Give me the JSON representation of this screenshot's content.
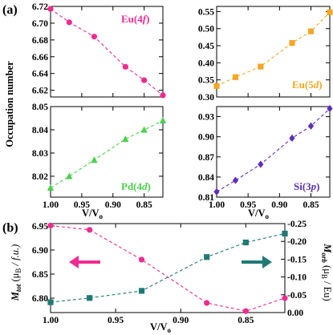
{
  "panel_tags": {
    "a": "(a)",
    "b": "(b)"
  },
  "colors": {
    "eu4f": "#ee2b90",
    "eu5d": "#f5a623",
    "pd4d": "#4cd04c",
    "si3p": "#5c2fb8",
    "mtot": "#ee2b90",
    "morb": "#1f7a75"
  },
  "chart_data": [
    {
      "id": "eu4f",
      "type": "line",
      "label": "Eu(4f)",
      "marker": "circle",
      "x": [
        1.0,
        0.97,
        0.93,
        0.88,
        0.85,
        0.82
      ],
      "y": [
        6.717,
        6.701,
        6.684,
        6.648,
        6.632,
        6.614
      ],
      "xlim": [
        1.0,
        0.82
      ],
      "ylim": [
        6.612,
        6.72
      ],
      "yticks": [
        6.62,
        6.64,
        6.66,
        6.68,
        6.7,
        6.72
      ],
      "ytick_labels": [
        "6.62",
        "6.64",
        "6.66",
        "6.68",
        "6.70",
        "6.72"
      ],
      "xticks": [
        1.0,
        0.95,
        0.9,
        0.85
      ],
      "xtick_labels": []
    },
    {
      "id": "eu5d",
      "type": "line",
      "label": "Eu(5d)",
      "marker": "square",
      "x": [
        1.0,
        0.97,
        0.93,
        0.88,
        0.85,
        0.82
      ],
      "y": [
        0.332,
        0.358,
        0.389,
        0.458,
        0.492,
        0.548
      ],
      "xlim": [
        1.0,
        0.82
      ],
      "ylim": [
        0.3,
        0.565
      ],
      "yticks": [
        0.3,
        0.35,
        0.4,
        0.45,
        0.5,
        0.55
      ],
      "ytick_labels": [
        "0.30",
        "0.35",
        "0.40",
        "0.45",
        "0.50",
        "0.55"
      ],
      "xticks": [
        1.0,
        0.95,
        0.9,
        0.85
      ],
      "xtick_labels": []
    },
    {
      "id": "pd4d",
      "type": "line",
      "label": "Pd(4d)",
      "marker": "triangle",
      "x": [
        1.0,
        0.97,
        0.93,
        0.88,
        0.85,
        0.82
      ],
      "y": [
        8.015,
        8.02,
        8.027,
        8.036,
        8.04,
        8.044
      ],
      "xlim": [
        1.0,
        0.82
      ],
      "ylim": [
        8.011,
        8.05
      ],
      "yticks": [
        8.02,
        8.03,
        8.04,
        8.05
      ],
      "ytick_labels": [
        "8.02",
        "8.03",
        "8.04",
        "8.05"
      ],
      "xticks": [
        1.0,
        0.95,
        0.9,
        0.85
      ],
      "xtick_labels": [
        "1.00",
        "0.95",
        "0.90",
        "0.85"
      ]
    },
    {
      "id": "si3p",
      "type": "line",
      "label": "Si(3p)",
      "marker": "diamond",
      "x": [
        1.0,
        0.97,
        0.93,
        0.88,
        0.85,
        0.82
      ],
      "y": [
        0.818,
        0.835,
        0.859,
        0.898,
        0.916,
        0.942
      ],
      "xlim": [
        1.0,
        0.82
      ],
      "ylim": [
        0.81,
        0.945
      ],
      "yticks": [
        0.81,
        0.84,
        0.87,
        0.9,
        0.93
      ],
      "ytick_labels": [
        "0.81",
        "0.84",
        "0.87",
        "0.90",
        "0.93"
      ],
      "xticks": [
        1.0,
        0.95,
        0.9,
        0.85
      ],
      "xtick_labels": [
        "1.00",
        "0.95",
        "0.90",
        "0.85"
      ]
    },
    {
      "id": "moments",
      "type": "line",
      "x": [
        1.0,
        0.97,
        0.93,
        0.88,
        0.85,
        0.82
      ],
      "xlim": [
        1.0,
        0.82
      ],
      "xticks": [
        1.0,
        0.95,
        0.9,
        0.85
      ],
      "xtick_labels": [
        "1.00",
        "0.95",
        "0.90",
        "0.85"
      ],
      "left_axis": {
        "ylim": [
          6.77,
          6.955
        ],
        "yticks": [
          6.8,
          6.85,
          6.9,
          6.95
        ],
        "ytick_labels": [
          "6.80",
          "6.85",
          "6.90",
          "6.95"
        ]
      },
      "right_axis": {
        "ylim": [
          0.0,
          -0.25
        ],
        "yticks": [
          0.0,
          -0.05,
          -0.1,
          -0.15,
          -0.2,
          -0.25
        ],
        "ytick_labels": [
          "0.00",
          "-0.05",
          "-0.10",
          "-0.15",
          "-0.20",
          "-0.25"
        ]
      },
      "series": [
        {
          "id": "mtot",
          "axis": "left",
          "marker": "circle",
          "y": [
            6.951,
            6.942,
            6.88,
            6.79,
            6.773,
            6.8
          ]
        },
        {
          "id": "morb",
          "axis": "right",
          "marker": "square",
          "y": [
            -0.029,
            -0.041,
            -0.061,
            -0.156,
            -0.197,
            -0.222
          ]
        }
      ]
    }
  ],
  "axis_labels": {
    "occupation": "Occupation number",
    "vv0_main": "V/V",
    "vv0_sub": "o",
    "vv0_bottom_main": "V/V",
    "vv0_bottom_sub": "o",
    "mtot_m": "M",
    "mtot_sub": "tot",
    "mtot_unit": " (μ",
    "mtot_unit_sub": "B",
    "mtot_unit_tail": " / f.u.)",
    "morb_m": "M",
    "morb_sub": "orb",
    "morb_unit": " (μ",
    "morb_unit_sub": "B",
    "morb_unit_tail": " / Eu)"
  },
  "series_labels": {
    "eu4f_main": "Eu(4",
    "eu4f_orb": "f",
    "eu5d_main": "Eu(5",
    "eu5d_orb": "d",
    "pd4d_main": "Pd(4",
    "pd4d_orb": "d",
    "si3p_main": "Si(3",
    "si3p_orb": "p",
    "close": ")"
  }
}
